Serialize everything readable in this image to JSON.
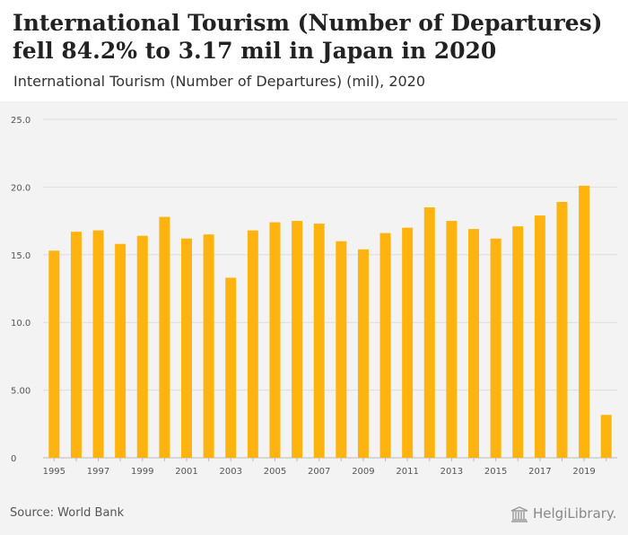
{
  "header": {
    "title": "International Tourism (Number of Departures) fell 84.2% to 3.17 mil in Japan in 2020",
    "subtitle": "International Tourism (Number of Departures) (mil), 2020"
  },
  "footer": {
    "source": "Source: World Bank",
    "logo_text": "HelgiLibrary."
  },
  "colors": {
    "bar": "#ffb30f",
    "grid": "#dddddd",
    "axis": "#bbbbbb",
    "panel": "#f3f3f3"
  },
  "chart_data": {
    "type": "bar",
    "categories": [
      "1995",
      "1996",
      "1997",
      "1998",
      "1999",
      "2000",
      "2001",
      "2002",
      "2003",
      "2004",
      "2005",
      "2006",
      "2007",
      "2008",
      "2009",
      "2010",
      "2011",
      "2012",
      "2013",
      "2014",
      "2015",
      "2016",
      "2017",
      "2018",
      "2019",
      "2020"
    ],
    "x_tick_labels": [
      "1995",
      "1997",
      "1999",
      "2001",
      "2003",
      "2005",
      "2007",
      "2009",
      "2011",
      "2013",
      "2015",
      "2017",
      "2019"
    ],
    "values": [
      15.3,
      16.7,
      16.8,
      15.8,
      16.4,
      17.8,
      16.2,
      16.5,
      13.3,
      16.8,
      17.4,
      17.5,
      17.3,
      16.0,
      15.4,
      16.6,
      17.0,
      18.5,
      17.5,
      16.9,
      16.2,
      17.1,
      17.9,
      18.9,
      20.1,
      3.17
    ],
    "y_ticks": [
      0,
      5,
      10,
      15,
      20,
      25
    ],
    "y_tick_labels": [
      "0",
      "5.00",
      "10.0",
      "15.0",
      "20.0",
      "25.0"
    ],
    "ylim": [
      0,
      25
    ],
    "grid": true,
    "legend": "none"
  }
}
